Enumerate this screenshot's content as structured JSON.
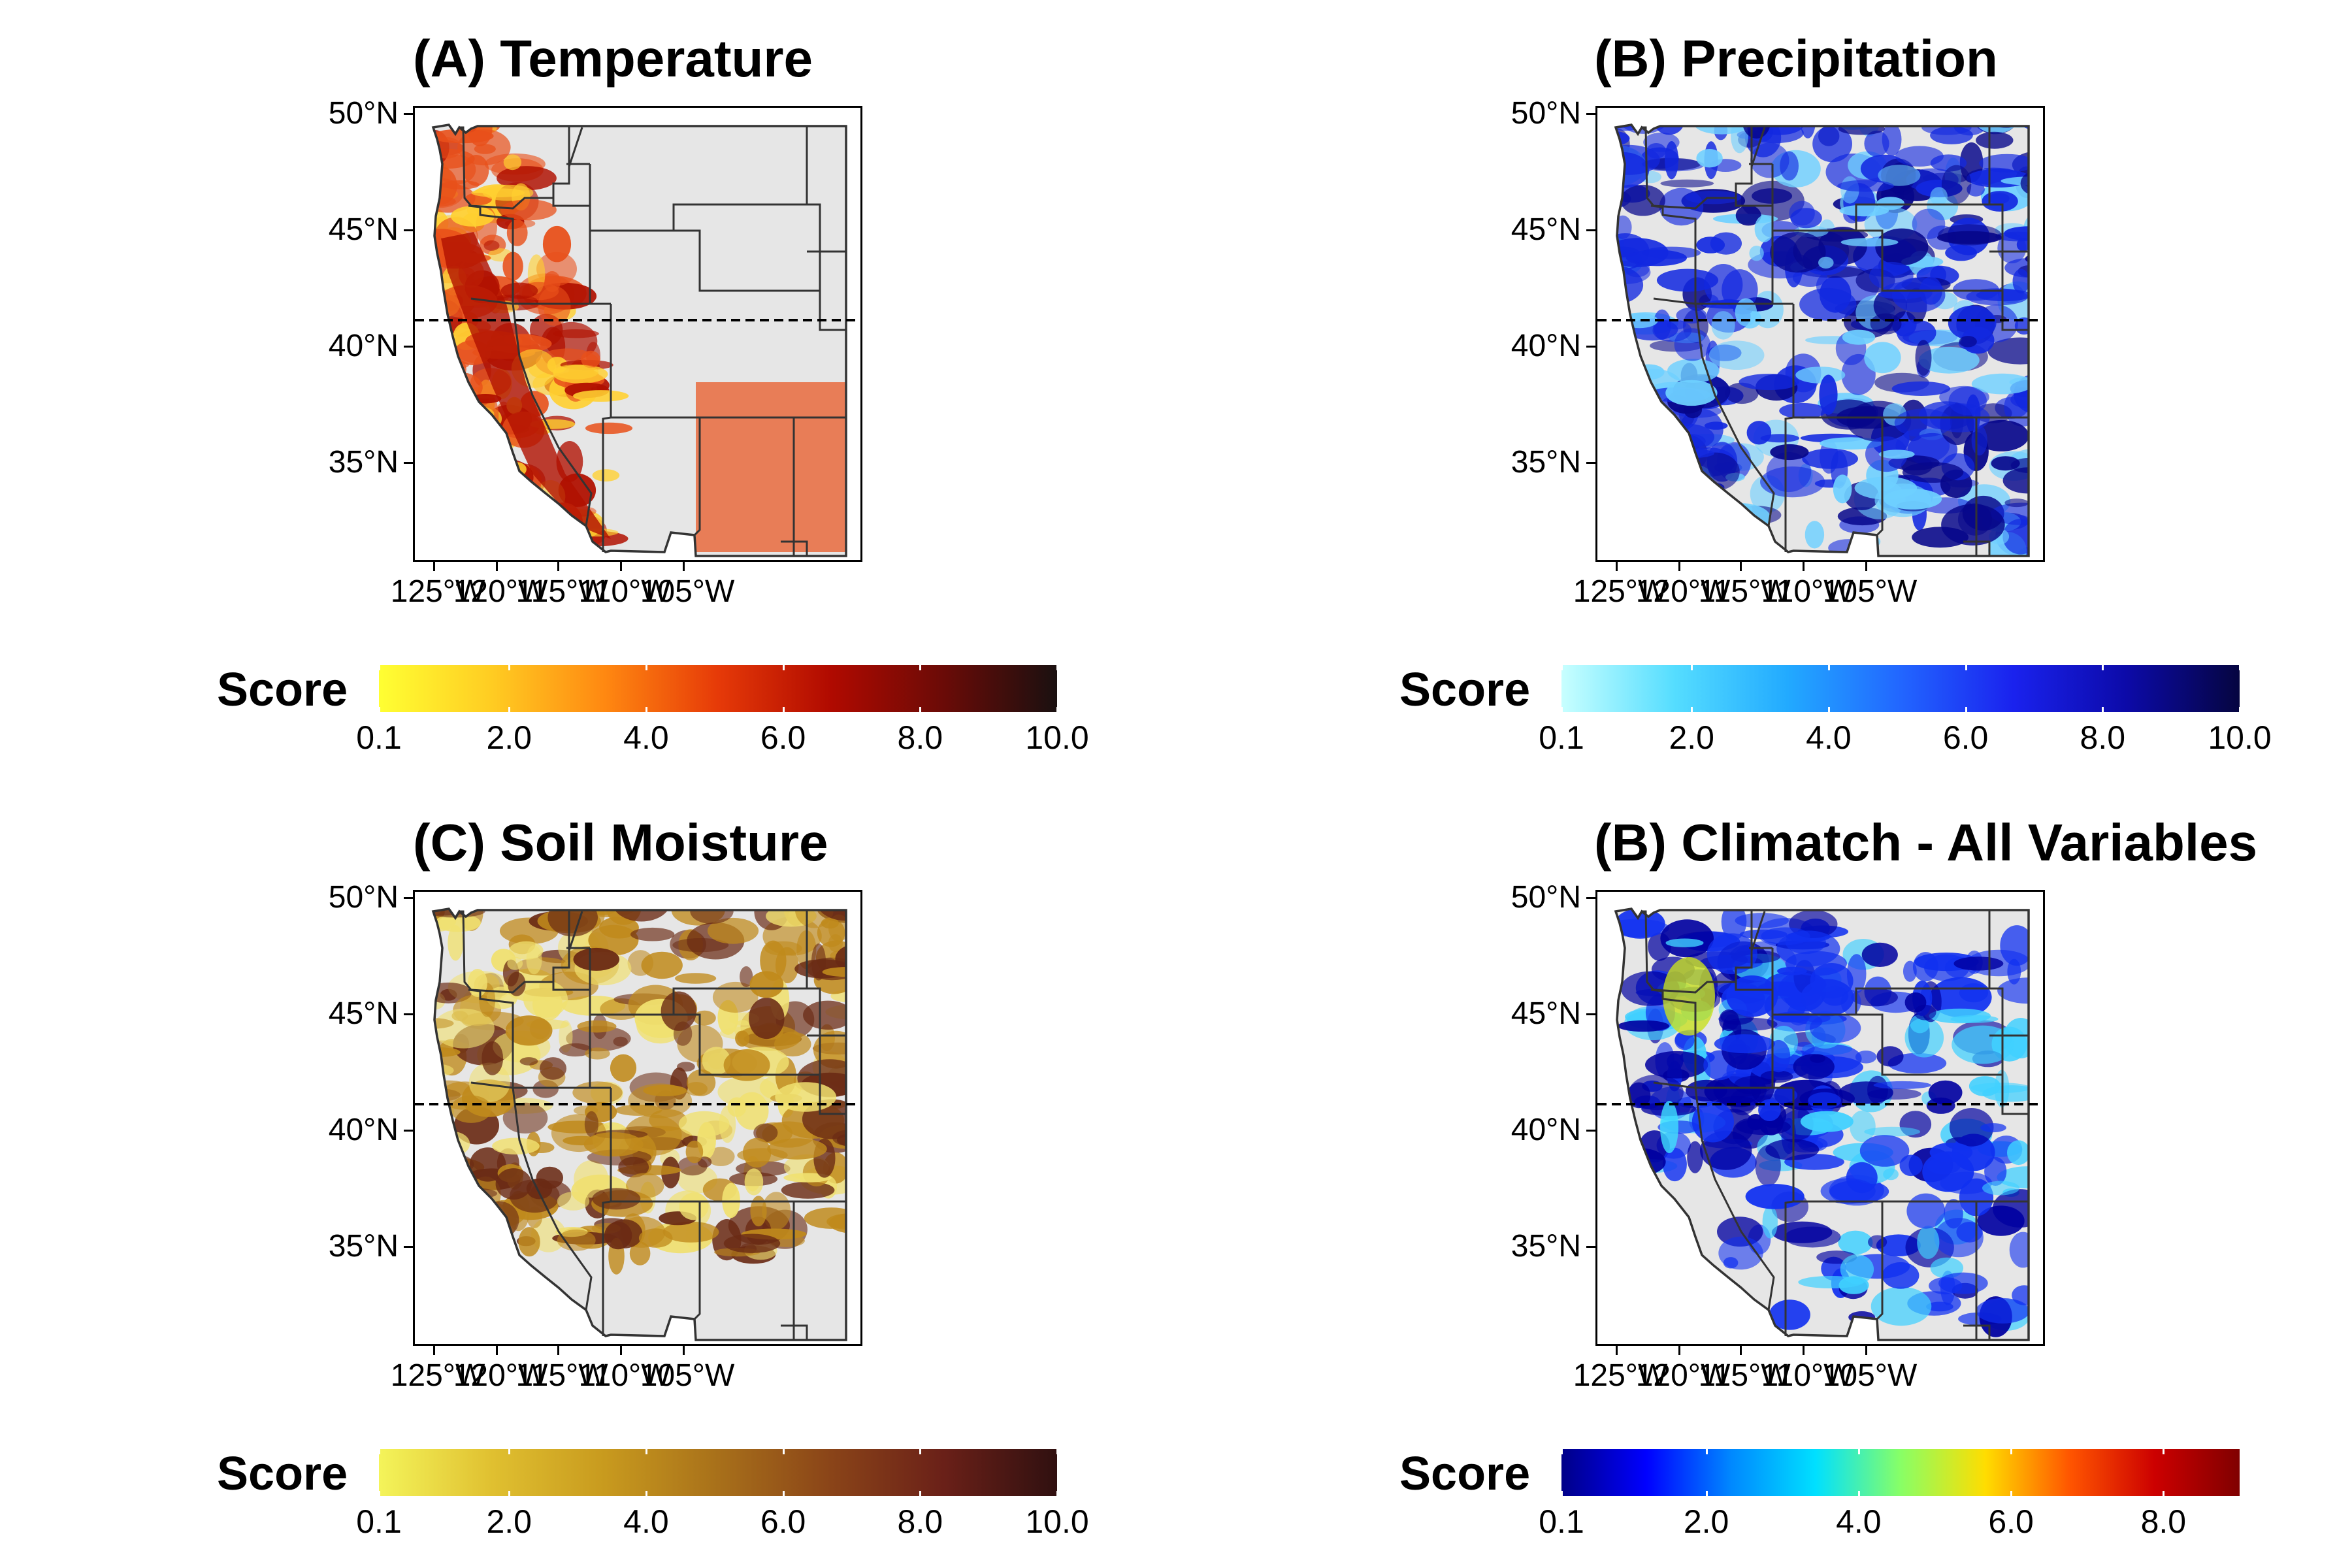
{
  "panels": [
    {
      "id": "temperature",
      "title": "(A) Temperature",
      "colorbar": {
        "title": "Score",
        "labels": [
          "0.1",
          "2.0",
          "4.0",
          "6.0",
          "8.0",
          "10.0"
        ],
        "stops": [
          "#ffff33",
          "#ffcc22",
          "#ff8811",
          "#e63a08",
          "#b00a00",
          "#6a0b07",
          "#1a1010"
        ]
      },
      "field": {
        "base": "#e8501a",
        "hot": "#b01000",
        "cool": "#ffd030"
      }
    },
    {
      "id": "precipitation",
      "title": "(B) Precipitation",
      "colorbar": {
        "title": "Score",
        "labels": [
          "0.1",
          "2.0",
          "4.0",
          "6.0",
          "8.0",
          "10.0"
        ],
        "stops": [
          "#c8ffff",
          "#55ddff",
          "#22aaff",
          "#2266ff",
          "#1a22ee",
          "#0c0aa8",
          "#050540"
        ]
      },
      "field": {
        "base": "#1228e0",
        "hot": "#06068a",
        "cool": "#6fd0ff"
      }
    },
    {
      "id": "soil-moisture",
      "title": "(C) Soil Moisture",
      "colorbar": {
        "title": "Score",
        "labels": [
          "0.1",
          "2.0",
          "4.0",
          "6.0",
          "8.0",
          "10.0"
        ],
        "stops": [
          "#f4f45a",
          "#e0c030",
          "#c89a1e",
          "#a8701a",
          "#8a4418",
          "#6a2018",
          "#301010"
        ]
      },
      "field": {
        "base": "#c08a1c",
        "hot": "#6a2a14",
        "cool": "#f0e070"
      }
    },
    {
      "id": "climatch-all",
      "title": "(B) Climatch - All Variables",
      "colorbar": {
        "title": "Score",
        "labels": [
          "0.1",
          "2.0",
          "4.0",
          "6.0",
          "8.0"
        ],
        "stops": [
          "#000088",
          "#0000ff",
          "#0088ff",
          "#00e0ff",
          "#88ff66",
          "#ffdd00",
          "#ff5500",
          "#cc0000",
          "#800000"
        ]
      },
      "field": {
        "base": "#1030f0",
        "hot": "#0000a0",
        "cool": "#40d0ff"
      }
    }
  ],
  "axes": {
    "y_labels": [
      "50°N",
      "45°N",
      "40°N",
      "35°N"
    ],
    "x_labels": [
      "125°W",
      "120°W",
      "115°W",
      "110°W",
      "105°W"
    ]
  },
  "map_colors": {
    "land": "#e6e6e6",
    "border": "#333333",
    "divider": "#000000"
  }
}
